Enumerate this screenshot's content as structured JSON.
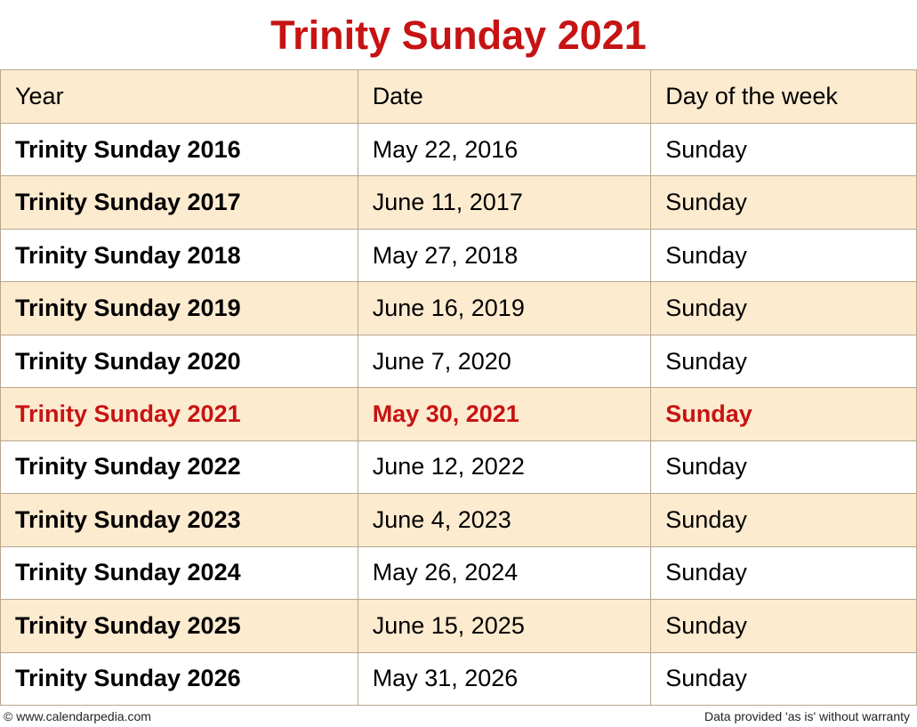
{
  "title": "Trinity Sunday 2021",
  "table": {
    "columns": [
      "Year",
      "Date",
      "Day of the week"
    ],
    "rows": [
      {
        "year": "Trinity Sunday 2016",
        "date": "May 22, 2016",
        "dow": "Sunday",
        "highlighted": false
      },
      {
        "year": "Trinity Sunday 2017",
        "date": "June 11, 2017",
        "dow": "Sunday",
        "highlighted": false
      },
      {
        "year": "Trinity Sunday 2018",
        "date": "May 27, 2018",
        "dow": "Sunday",
        "highlighted": false
      },
      {
        "year": "Trinity Sunday 2019",
        "date": "June 16, 2019",
        "dow": "Sunday",
        "highlighted": false
      },
      {
        "year": "Trinity Sunday 2020",
        "date": "June 7, 2020",
        "dow": "Sunday",
        "highlighted": false
      },
      {
        "year": "Trinity Sunday 2021",
        "date": "May 30, 2021",
        "dow": "Sunday",
        "highlighted": true
      },
      {
        "year": "Trinity Sunday 2022",
        "date": "June 12, 2022",
        "dow": "Sunday",
        "highlighted": false
      },
      {
        "year": "Trinity Sunday 2023",
        "date": "June 4, 2023",
        "dow": "Sunday",
        "highlighted": false
      },
      {
        "year": "Trinity Sunday 2024",
        "date": "May 26, 2024",
        "dow": "Sunday",
        "highlighted": false
      },
      {
        "year": "Trinity Sunday 2025",
        "date": "June 15, 2025",
        "dow": "Sunday",
        "highlighted": false
      },
      {
        "year": "Trinity Sunday 2026",
        "date": "May 31, 2026",
        "dow": "Sunday",
        "highlighted": false
      }
    ]
  },
  "footer": {
    "copyright": "© www.calendarpedia.com",
    "disclaimer": "Data provided 'as is' without warranty"
  },
  "styling": {
    "title_color": "#c71313",
    "title_fontsize": 45,
    "header_bg": "#fdebd0",
    "row_odd_bg": "#ffffff",
    "row_even_bg": "#fdebd0",
    "border_color": "#b8a78c",
    "highlighted_text_color": "#c71313",
    "body_fontsize": 27,
    "footer_fontsize": 14,
    "col_widths_pct": [
      39,
      32,
      29
    ]
  }
}
